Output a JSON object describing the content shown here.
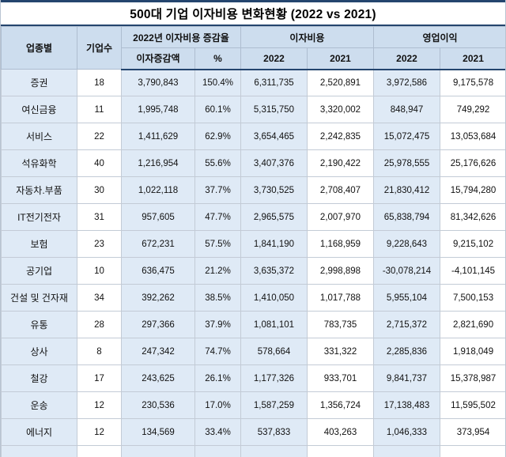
{
  "title": "500대 기업 이자비용 변화현황 (2022 vs 2021)",
  "colors": {
    "navy_border": "#24456e",
    "header_bg": "#cdddee",
    "shaded_column_bg": "#dfeaf6"
  },
  "chart_data": {
    "type": "table",
    "title": "500대 기업 이자비용 변화현황 (2022 vs 2021)",
    "headers": {
      "industry": "업종별",
      "companies": "기업수",
      "change_group": "2022년 이자비용 증감율",
      "change_amount": "이자증감액",
      "change_pct": "%",
      "interest_group": "이자비용",
      "interest_2022": "2022",
      "interest_2021": "2021",
      "profit_group": "영업이익",
      "profit_2022": "2022",
      "profit_2021": "2021"
    },
    "rows": [
      {
        "industry": "증권",
        "companies": "18",
        "change_amount": "3,790,843",
        "change_pct": "150.4%",
        "interest_2022": "6,311,735",
        "interest_2021": "2,520,891",
        "profit_2022": "3,972,586",
        "profit_2021": "9,175,578"
      },
      {
        "industry": "여신금융",
        "companies": "11",
        "change_amount": "1,995,748",
        "change_pct": "60.1%",
        "interest_2022": "5,315,750",
        "interest_2021": "3,320,002",
        "profit_2022": "848,947",
        "profit_2021": "749,292"
      },
      {
        "industry": "서비스",
        "companies": "22",
        "change_amount": "1,411,629",
        "change_pct": "62.9%",
        "interest_2022": "3,654,465",
        "interest_2021": "2,242,835",
        "profit_2022": "15,072,475",
        "profit_2021": "13,053,684"
      },
      {
        "industry": "석유화학",
        "companies": "40",
        "change_amount": "1,216,954",
        "change_pct": "55.6%",
        "interest_2022": "3,407,376",
        "interest_2021": "2,190,422",
        "profit_2022": "25,978,555",
        "profit_2021": "25,176,626"
      },
      {
        "industry": "자동차.부품",
        "companies": "30",
        "change_amount": "1,022,118",
        "change_pct": "37.7%",
        "interest_2022": "3,730,525",
        "interest_2021": "2,708,407",
        "profit_2022": "21,830,412",
        "profit_2021": "15,794,280"
      },
      {
        "industry": "IT전기전자",
        "companies": "31",
        "change_amount": "957,605",
        "change_pct": "47.7%",
        "interest_2022": "2,965,575",
        "interest_2021": "2,007,970",
        "profit_2022": "65,838,794",
        "profit_2021": "81,342,626"
      },
      {
        "industry": "보험",
        "companies": "23",
        "change_amount": "672,231",
        "change_pct": "57.5%",
        "interest_2022": "1,841,190",
        "interest_2021": "1,168,959",
        "profit_2022": "9,228,643",
        "profit_2021": "9,215,102"
      },
      {
        "industry": "공기업",
        "companies": "10",
        "change_amount": "636,475",
        "change_pct": "21.2%",
        "interest_2022": "3,635,372",
        "interest_2021": "2,998,898",
        "profit_2022": "-30,078,214",
        "profit_2021": "-4,101,145"
      },
      {
        "industry": "건설 및 건자재",
        "companies": "34",
        "change_amount": "392,262",
        "change_pct": "38.5%",
        "interest_2022": "1,410,050",
        "interest_2021": "1,017,788",
        "profit_2022": "5,955,104",
        "profit_2021": "7,500,153"
      },
      {
        "industry": "유통",
        "companies": "28",
        "change_amount": "297,366",
        "change_pct": "37.9%",
        "interest_2022": "1,081,101",
        "interest_2021": "783,735",
        "profit_2022": "2,715,372",
        "profit_2021": "2,821,690"
      },
      {
        "industry": "상사",
        "companies": "8",
        "change_amount": "247,342",
        "change_pct": "74.7%",
        "interest_2022": "578,664",
        "interest_2021": "331,322",
        "profit_2022": "2,285,836",
        "profit_2021": "1,918,049"
      },
      {
        "industry": "철강",
        "companies": "17",
        "change_amount": "243,625",
        "change_pct": "26.1%",
        "interest_2022": "1,177,326",
        "interest_2021": "933,701",
        "profit_2022": "9,841,737",
        "profit_2021": "15,378,987"
      },
      {
        "industry": "운송",
        "companies": "12",
        "change_amount": "230,536",
        "change_pct": "17.0%",
        "interest_2022": "1,587,259",
        "interest_2021": "1,356,724",
        "profit_2022": "17,138,483",
        "profit_2021": "11,595,502"
      },
      {
        "industry": "에너지",
        "companies": "12",
        "change_amount": "134,569",
        "change_pct": "33.4%",
        "interest_2022": "537,833",
        "interest_2021": "403,263",
        "profit_2022": "1,046,333",
        "profit_2021": "373,954"
      }
    ]
  }
}
